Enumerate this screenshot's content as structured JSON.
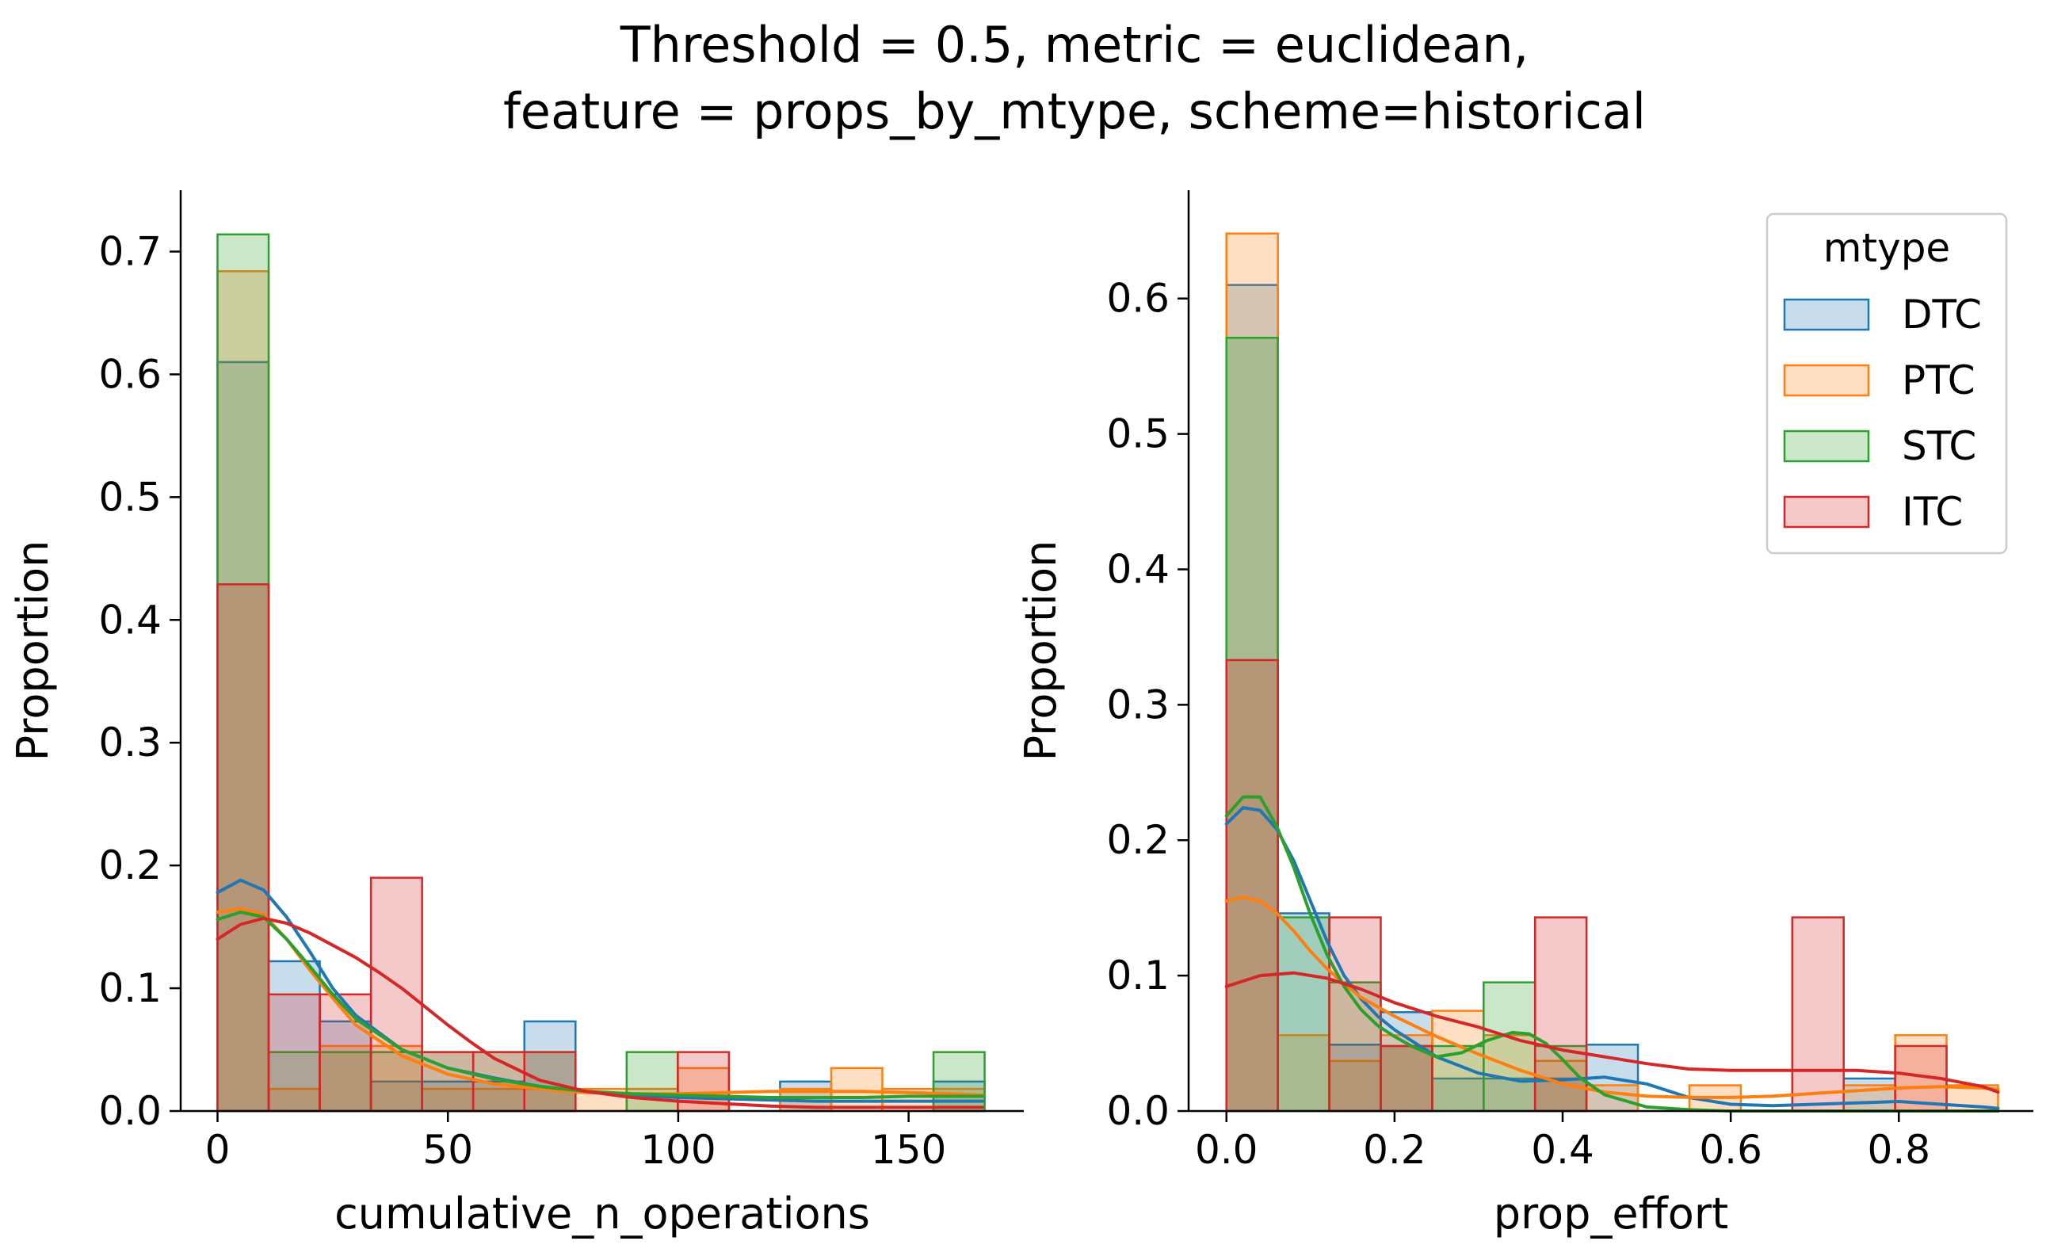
{
  "figure": {
    "title_line1": "Threshold = 0.5, metric = euclidean,",
    "title_line2": "feature = props_by_mtype, scheme=historical"
  },
  "legend": {
    "title": "mtype",
    "placement": "top-right of right panel",
    "entries": [
      {
        "label": "DTC",
        "color": "#1f77b4"
      },
      {
        "label": "PTC",
        "color": "#ff7f0e"
      },
      {
        "label": "STC",
        "color": "#2ca02c"
      },
      {
        "label": "ITC",
        "color": "#d62728"
      }
    ]
  },
  "chart_data": [
    {
      "type": "histogram",
      "xlabel": "cumulative_n_operations",
      "ylabel": "Proportion",
      "xlim": [
        -8,
        175
      ],
      "ylim": [
        0,
        0.75
      ],
      "xticks": [
        0,
        50,
        100,
        150
      ],
      "xtick_labels": [
        "0",
        "50",
        "100",
        "150"
      ],
      "yticks": [
        0,
        0.1,
        0.2,
        0.3,
        0.4,
        0.5,
        0.6,
        0.7
      ],
      "ytick_labels": [
        "0.0",
        "0.1",
        "0.2",
        "0.3",
        "0.4",
        "0.5",
        "0.6",
        "0.7"
      ],
      "bin_edges": [
        0,
        11.1,
        22.2,
        33.3,
        44.4,
        55.5,
        66.6,
        77.7,
        88.8,
        99.9,
        111,
        122.1,
        133.2,
        144.3,
        155.4,
        166.5
      ],
      "series": [
        {
          "name": "DTC",
          "color": "#1f77b4",
          "values": [
            0.61,
            0.122,
            0.073,
            0.024,
            0.024,
            0.024,
            0.073,
            0,
            0,
            0,
            0,
            0.024,
            0,
            0,
            0.024
          ],
          "kde": {
            "x": [
              0,
              5,
              10,
              15,
              20,
              25,
              30,
              40,
              50,
              60,
              70,
              80,
              90,
              100,
              110,
              120,
              130,
              140,
              150,
              160,
              166
            ],
            "y": [
              0.178,
              0.188,
              0.18,
              0.158,
              0.13,
              0.1,
              0.078,
              0.05,
              0.035,
              0.027,
              0.02,
              0.016,
              0.013,
              0.011,
              0.01,
              0.009,
              0.008,
              0.008,
              0.008,
              0.008,
              0.008
            ]
          }
        },
        {
          "name": "PTC",
          "color": "#ff7f0e",
          "values": [
            0.684,
            0.018,
            0.053,
            0.053,
            0.018,
            0.018,
            0.018,
            0.018,
            0.018,
            0.035,
            0,
            0.018,
            0.035,
            0.018,
            0.018
          ],
          "kde": {
            "x": [
              0,
              5,
              10,
              15,
              20,
              25,
              30,
              40,
              50,
              60,
              70,
              80,
              90,
              100,
              110,
              120,
              130,
              140,
              150,
              160,
              166
            ],
            "y": [
              0.162,
              0.165,
              0.16,
              0.14,
              0.115,
              0.092,
              0.07,
              0.045,
              0.03,
              0.022,
              0.018,
              0.015,
              0.014,
              0.014,
              0.015,
              0.016,
              0.016,
              0.016,
              0.015,
              0.014,
              0.013
            ]
          }
        },
        {
          "name": "STC",
          "color": "#2ca02c",
          "values": [
            0.714,
            0.048,
            0.048,
            0.048,
            0.048,
            0.048,
            0.048,
            0,
            0.048,
            0,
            0,
            0,
            0,
            0,
            0.048
          ],
          "kde": {
            "x": [
              0,
              5,
              10,
              15,
              20,
              25,
              30,
              40,
              50,
              60,
              70,
              80,
              90,
              100,
              110,
              120,
              130,
              140,
              150,
              160,
              166
            ],
            "y": [
              0.156,
              0.162,
              0.158,
              0.14,
              0.118,
              0.095,
              0.075,
              0.05,
              0.035,
              0.026,
              0.02,
              0.016,
              0.014,
              0.013,
              0.012,
              0.011,
              0.011,
              0.011,
              0.012,
              0.012,
              0.012
            ]
          }
        },
        {
          "name": "ITC",
          "color": "#d62728",
          "values": [
            0.429,
            0.095,
            0.095,
            0.19,
            0.048,
            0.048,
            0.048,
            0,
            0,
            0.048,
            0,
            0,
            0,
            0,
            0
          ],
          "kde": {
            "x": [
              0,
              5,
              10,
              15,
              20,
              25,
              30,
              35,
              40,
              45,
              50,
              55,
              60,
              70,
              80,
              90,
              100,
              110,
              120,
              130,
              140,
              150,
              160,
              166
            ],
            "y": [
              0.14,
              0.152,
              0.157,
              0.153,
              0.145,
              0.135,
              0.125,
              0.113,
              0.1,
              0.085,
              0.07,
              0.056,
              0.043,
              0.025,
              0.016,
              0.011,
              0.008,
              0.006,
              0.004,
              0.003,
              0.003,
              0.003,
              0.003,
              0.003
            ]
          }
        }
      ]
    },
    {
      "type": "histogram",
      "xlabel": "prop_effort",
      "ylabel": "Proportion",
      "xlim": [
        -0.045,
        0.96
      ],
      "ylim": [
        0,
        0.68
      ],
      "xticks": [
        0.0,
        0.2,
        0.4,
        0.6,
        0.8
      ],
      "xtick_labels": [
        "0.0",
        "0.2",
        "0.4",
        "0.6",
        "0.8"
      ],
      "yticks": [
        0,
        0.1,
        0.2,
        0.3,
        0.4,
        0.5,
        0.6
      ],
      "ytick_labels": [
        "0.0",
        "0.1",
        "0.2",
        "0.3",
        "0.4",
        "0.5",
        "0.6"
      ],
      "bin_edges": [
        0,
        0.0612,
        0.1224,
        0.1836,
        0.2448,
        0.306,
        0.3672,
        0.4284,
        0.4896,
        0.5508,
        0.612,
        0.6732,
        0.7344,
        0.7956,
        0.8568,
        0.918
      ],
      "series": [
        {
          "name": "DTC",
          "color": "#1f77b4",
          "values": [
            0.61,
            0.146,
            0.049,
            0.073,
            0.024,
            0.024,
            0.024,
            0.049,
            0,
            0,
            0,
            0,
            0.024,
            0,
            0
          ],
          "kde": {
            "x": [
              0,
              0.02,
              0.04,
              0.06,
              0.08,
              0.1,
              0.12,
              0.14,
              0.16,
              0.18,
              0.2,
              0.25,
              0.3,
              0.35,
              0.4,
              0.45,
              0.5,
              0.55,
              0.6,
              0.65,
              0.7,
              0.75,
              0.8,
              0.85,
              0.9,
              0.918
            ],
            "y": [
              0.212,
              0.224,
              0.222,
              0.208,
              0.185,
              0.155,
              0.125,
              0.1,
              0.083,
              0.07,
              0.06,
              0.04,
              0.028,
              0.022,
              0.023,
              0.025,
              0.02,
              0.01,
              0.005,
              0.004,
              0.005,
              0.006,
              0.007,
              0.005,
              0.003,
              0.002
            ]
          }
        },
        {
          "name": "PTC",
          "color": "#ff7f0e",
          "values": [
            0.648,
            0.056,
            0.037,
            0.056,
            0.074,
            0.056,
            0.037,
            0.019,
            0,
            0.019,
            0,
            0,
            0.019,
            0.056,
            0.019
          ],
          "kde": {
            "x": [
              0,
              0.02,
              0.04,
              0.06,
              0.08,
              0.1,
              0.12,
              0.14,
              0.16,
              0.2,
              0.25,
              0.3,
              0.35,
              0.4,
              0.45,
              0.5,
              0.55,
              0.6,
              0.65,
              0.7,
              0.75,
              0.8,
              0.85,
              0.9,
              0.918
            ],
            "y": [
              0.155,
              0.158,
              0.155,
              0.146,
              0.133,
              0.118,
              0.105,
              0.094,
              0.084,
              0.07,
              0.055,
              0.042,
              0.03,
              0.02,
              0.014,
              0.011,
              0.01,
              0.01,
              0.011,
              0.013,
              0.015,
              0.017,
              0.018,
              0.017,
              0.016
            ]
          }
        },
        {
          "name": "STC",
          "color": "#2ca02c",
          "values": [
            0.571,
            0.143,
            0.095,
            0.048,
            0.048,
            0.095,
            0.048,
            0,
            0,
            0,
            0,
            0,
            0,
            0,
            0
          ],
          "kde": {
            "x": [
              0,
              0.02,
              0.04,
              0.06,
              0.08,
              0.1,
              0.12,
              0.14,
              0.16,
              0.18,
              0.2,
              0.22,
              0.25,
              0.28,
              0.31,
              0.34,
              0.36,
              0.38,
              0.4,
              0.42,
              0.45,
              0.5,
              0.55,
              0.6,
              0.7,
              0.8,
              0.9,
              0.918
            ],
            "y": [
              0.218,
              0.232,
              0.232,
              0.21,
              0.18,
              0.145,
              0.115,
              0.092,
              0.075,
              0.063,
              0.055,
              0.048,
              0.04,
              0.043,
              0.052,
              0.058,
              0.057,
              0.05,
              0.038,
              0.025,
              0.012,
              0.003,
              0.001,
              0,
              0,
              0,
              0,
              0
            ]
          }
        },
        {
          "name": "ITC",
          "color": "#d62728",
          "values": [
            0.333,
            0,
            0.143,
            0.048,
            0,
            0,
            0.143,
            0,
            0,
            0,
            0,
            0.143,
            0,
            0.048,
            0
          ],
          "kde": {
            "x": [
              0,
              0.04,
              0.08,
              0.12,
              0.16,
              0.2,
              0.25,
              0.3,
              0.35,
              0.4,
              0.45,
              0.5,
              0.55,
              0.6,
              0.65,
              0.7,
              0.75,
              0.8,
              0.85,
              0.9,
              0.918
            ],
            "y": [
              0.092,
              0.1,
              0.102,
              0.098,
              0.09,
              0.08,
              0.07,
              0.062,
              0.052,
              0.045,
              0.04,
              0.035,
              0.031,
              0.03,
              0.03,
              0.03,
              0.03,
              0.028,
              0.024,
              0.018,
              0.014
            ]
          }
        }
      ]
    }
  ]
}
